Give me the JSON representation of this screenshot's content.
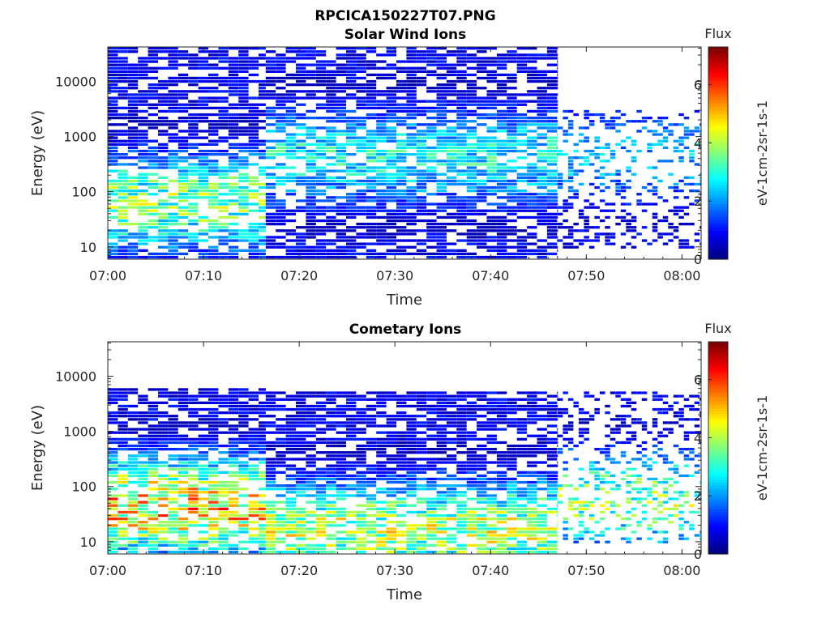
{
  "figure": {
    "title": "RPCICA150227T07.PNG"
  },
  "chart_data": [
    {
      "type": "heatmap",
      "title": "Solar Wind Ions",
      "xlabel": "Time",
      "ylabel": "Energy (eV)",
      "x_ticks": [
        "07:00",
        "07:10",
        "07:20",
        "07:30",
        "07:40",
        "07:50",
        "08:00"
      ],
      "x_range_minutes": [
        0,
        62
      ],
      "y_scale": "log",
      "y_ticks": [
        {
          "value": 10,
          "label": "10"
        },
        {
          "value": 100,
          "label": "100"
        },
        {
          "value": 1000,
          "label": "1000"
        },
        {
          "value": 10000,
          "label": "10000"
        }
      ],
      "y_range": [
        6,
        42000
      ],
      "colorbar": {
        "title": "Flux",
        "label": "eV-1cm-2sr-1s-1",
        "range": [
          0,
          7.3
        ],
        "ticks": [
          0,
          2,
          4,
          6
        ],
        "colormap": "jet"
      },
      "segments": [
        {
          "t0": 0,
          "t1": 16.5,
          "peak_flux": 4.2,
          "peak_energy": 60,
          "max_energy": 42000,
          "min_energy": 6
        },
        {
          "t0": 16.5,
          "t1": 47,
          "peak_flux": 3.2,
          "peak_energy": 400,
          "max_energy": 42000,
          "min_energy": 6
        },
        {
          "t0": 47,
          "t1": 62,
          "peak_flux": 2.6,
          "peak_energy": 400,
          "max_energy": 3000,
          "min_energy": 8
        }
      ]
    },
    {
      "type": "heatmap",
      "title": "Cometary Ions",
      "xlabel": "Time",
      "ylabel": "Energy (eV)",
      "x_ticks": [
        "07:00",
        "07:10",
        "07:20",
        "07:30",
        "07:40",
        "07:50",
        "08:00"
      ],
      "x_range_minutes": [
        0,
        62
      ],
      "y_scale": "log",
      "y_ticks": [
        {
          "value": 10,
          "label": "10"
        },
        {
          "value": 100,
          "label": "100"
        },
        {
          "value": 1000,
          "label": "1000"
        },
        {
          "value": 10000,
          "label": "10000"
        }
      ],
      "y_range": [
        6,
        42000
      ],
      "colorbar": {
        "title": "Flux",
        "label": "eV-1cm-2sr-1s-1",
        "range": [
          0,
          7.3
        ],
        "ticks": [
          0,
          2,
          4,
          6
        ],
        "colormap": "jet"
      },
      "segments": [
        {
          "t0": 0,
          "t1": 16.5,
          "peak_flux": 5.6,
          "peak_energy": 40,
          "max_energy": 6000,
          "min_energy": 6
        },
        {
          "t0": 16.5,
          "t1": 47,
          "peak_flux": 4.6,
          "peak_energy": 15,
          "max_energy": 5000,
          "min_energy": 6
        },
        {
          "t0": 47,
          "t1": 62,
          "peak_flux": 4.2,
          "peak_energy": 50,
          "max_energy": 5000,
          "min_energy": 8
        }
      ]
    }
  ]
}
